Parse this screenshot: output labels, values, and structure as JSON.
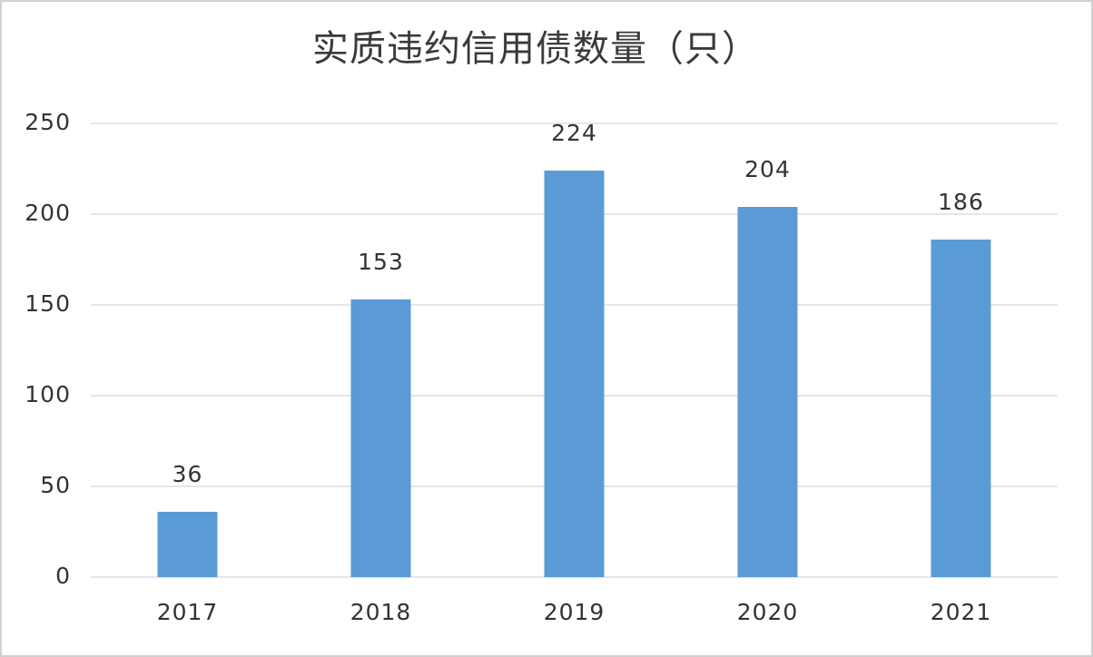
{
  "chart_data": {
    "type": "bar",
    "title": "实质违约信用债数量（只）",
    "categories": [
      "2017",
      "2018",
      "2019",
      "2020",
      "2021"
    ],
    "values": [
      36,
      153,
      224,
      204,
      186
    ],
    "color": "#5b9bd5",
    "ylim": [
      0,
      250
    ],
    "yticks": [
      0,
      50,
      100,
      150,
      200,
      250
    ],
    "grid": true
  }
}
